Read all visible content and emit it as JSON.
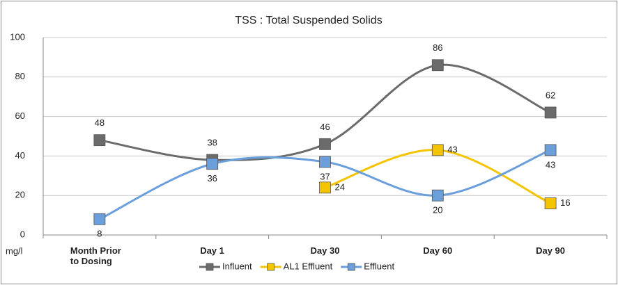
{
  "chart_data": {
    "type": "line",
    "title": "TSS : Total Suspended Solids",
    "y_label": "mg/l",
    "categories": [
      "Month Prior to Dosing",
      "Day 1",
      "Day 30",
      "Day 60",
      "Day 90"
    ],
    "series": [
      {
        "name": "Influent",
        "color": "#6b6b6b",
        "values": [
          48,
          38,
          46,
          86,
          62
        ],
        "label_position": "above"
      },
      {
        "name": "AL1 Effluent",
        "color": "#f5c400",
        "values": [
          null,
          null,
          24,
          43,
          16
        ],
        "label_position": "right"
      },
      {
        "name": "Effluent",
        "color": "#6a9fdb",
        "values": [
          8,
          36,
          37,
          20,
          43
        ],
        "label_position": "below"
      }
    ],
    "ylim": [
      0,
      100
    ],
    "yticks": [
      0,
      20,
      40,
      60,
      80,
      100
    ],
    "grid": true,
    "smooth": true,
    "legend": "bottom"
  }
}
